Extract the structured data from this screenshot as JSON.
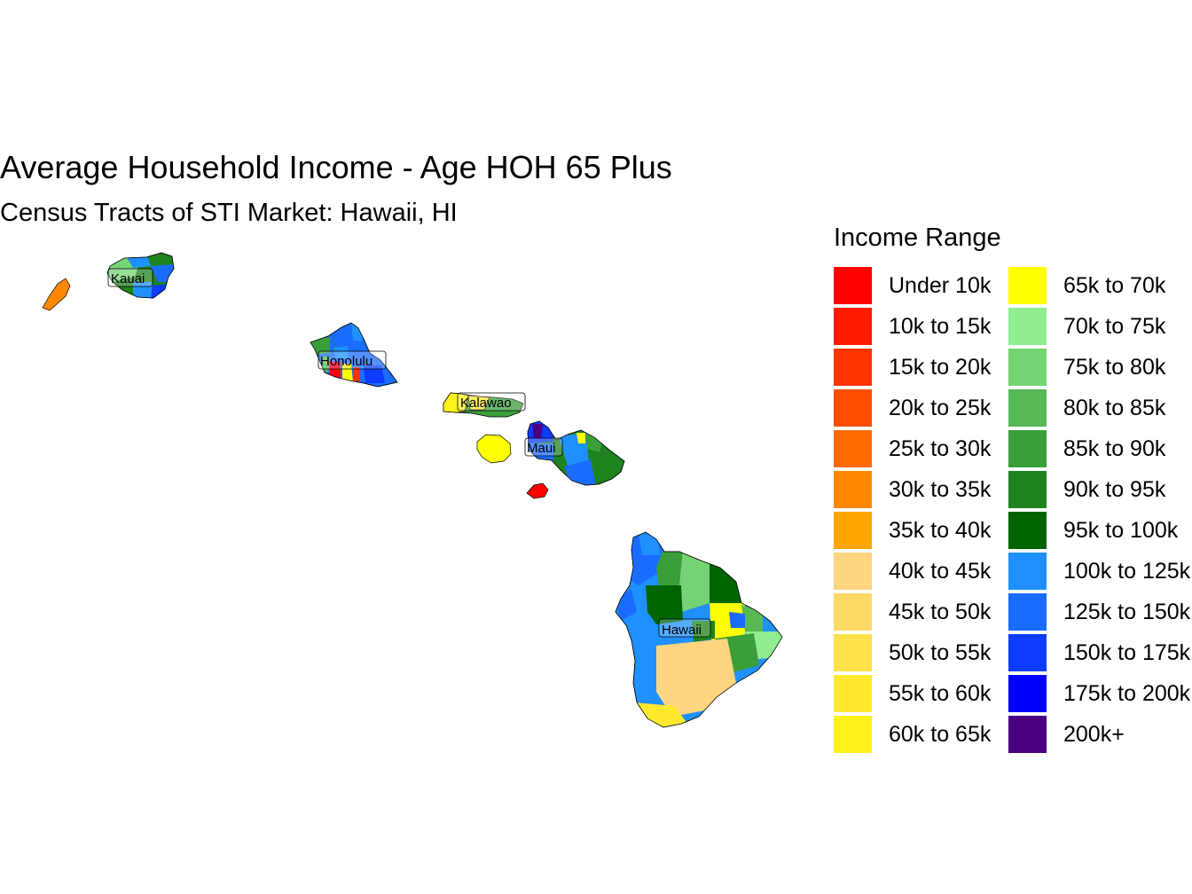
{
  "title": "Average Household Income - Age HOH 65 Plus",
  "subtitle": "Census Tracts of STI Market: Hawaii, HI",
  "legend": {
    "title": "Income Range",
    "items": [
      {
        "label": "Under 10k",
        "color": "#FF0000"
      },
      {
        "label": "10k to 15k",
        "color": "#FF1A00"
      },
      {
        "label": "15k to 20k",
        "color": "#FF3300"
      },
      {
        "label": "20k to 25k",
        "color": "#FF4D00"
      },
      {
        "label": "25k to 30k",
        "color": "#FF6A00"
      },
      {
        "label": "30k to 35k",
        "color": "#FF8800"
      },
      {
        "label": "35k to 40k",
        "color": "#FFA500"
      },
      {
        "label": "40k to 45k",
        "color": "#FFD580"
      },
      {
        "label": "45k to 50k",
        "color": "#FFD966"
      },
      {
        "label": "50k to 55k",
        "color": "#FFE14A"
      },
      {
        "label": "55k to 60k",
        "color": "#FFE92E"
      },
      {
        "label": "60k to 65k",
        "color": "#FFF21A"
      },
      {
        "label": "65k to 70k",
        "color": "#FFFF00"
      },
      {
        "label": "70k to 75k",
        "color": "#90EE90"
      },
      {
        "label": "75k to 80k",
        "color": "#74D474"
      },
      {
        "label": "80k to 85k",
        "color": "#56B956"
      },
      {
        "label": "85k to 90k",
        "color": "#3A9E3A"
      },
      {
        "label": "90k to 95k",
        "color": "#1E821E"
      },
      {
        "label": "95k to 100k",
        "color": "#006400"
      },
      {
        "label": "100k to 125k",
        "color": "#1E90FF"
      },
      {
        "label": "125k to 150k",
        "color": "#1A6CFF"
      },
      {
        "label": "150k to 175k",
        "color": "#0D3BFF"
      },
      {
        "label": "175k to 200k",
        "color": "#0000FF"
      },
      {
        "label": "200k+",
        "color": "#4B0082"
      }
    ]
  },
  "county_labels": {
    "kauai": "Kauai",
    "honolulu": "Honolulu",
    "kalawao": "Kalawao",
    "maui": "Maui",
    "hawaii": "Hawaii"
  }
}
